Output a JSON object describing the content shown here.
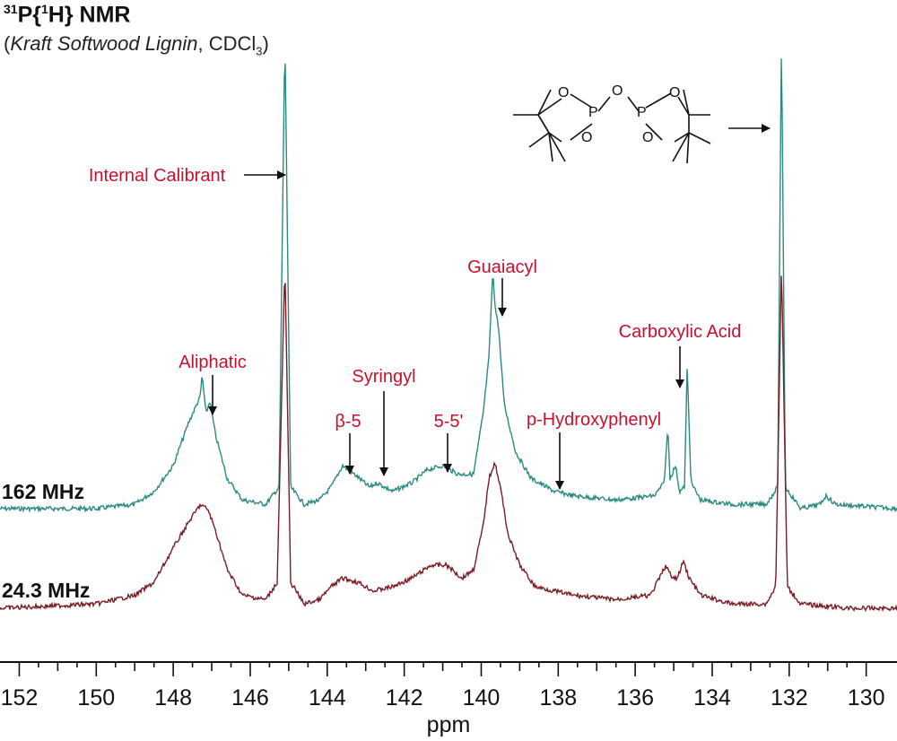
{
  "header": {
    "nucleus_mass": "31",
    "title_rest_a": "P{",
    "title_h_mass": "1",
    "title_rest_b": "H} NMR",
    "subtitle_open": "(",
    "subtitle_sample": "Kraft Softwood Lignin",
    "subtitle_solvent": ", CDCl",
    "subtitle_sub": "3",
    "subtitle_close": ")"
  },
  "chart_data": {
    "type": "line",
    "xlabel": "ppm",
    "xlim": [
      152.5,
      129.2
    ],
    "x_reversed": true,
    "xticks": [
      152,
      150,
      148,
      146,
      144,
      142,
      140,
      138,
      136,
      134,
      132,
      130
    ],
    "series": [
      {
        "name": "162 MHz",
        "color": "#2a8a80",
        "points": [
          [
            152.5,
            0.0
          ],
          [
            150,
            0.0
          ],
          [
            149,
            0.01
          ],
          [
            148.5,
            0.04
          ],
          [
            148,
            0.1
          ],
          [
            147.6,
            0.2
          ],
          [
            147.3,
            0.26
          ],
          [
            147.25,
            0.31
          ],
          [
            147.15,
            0.22
          ],
          [
            147.05,
            0.25
          ],
          [
            146.9,
            0.17
          ],
          [
            146.6,
            0.07
          ],
          [
            146.2,
            0.02
          ],
          [
            145.6,
            0.01
          ],
          [
            145.25,
            0.05
          ],
          [
            145.1,
            1.1
          ],
          [
            144.95,
            0.05
          ],
          [
            144.6,
            0.01
          ],
          [
            144.2,
            0.02
          ],
          [
            143.9,
            0.05
          ],
          [
            143.6,
            0.1
          ],
          [
            143.3,
            0.08
          ],
          [
            142.9,
            0.05
          ],
          [
            142.7,
            0.06
          ],
          [
            142.3,
            0.04
          ],
          [
            141.8,
            0.06
          ],
          [
            141.4,
            0.09
          ],
          [
            141.0,
            0.1
          ],
          [
            140.6,
            0.08
          ],
          [
            140.2,
            0.08
          ],
          [
            139.95,
            0.22
          ],
          [
            139.8,
            0.35
          ],
          [
            139.7,
            0.55
          ],
          [
            139.65,
            0.48
          ],
          [
            139.55,
            0.42
          ],
          [
            139.4,
            0.24
          ],
          [
            139.1,
            0.13
          ],
          [
            138.7,
            0.07
          ],
          [
            138.1,
            0.04
          ],
          [
            137.6,
            0.03
          ],
          [
            136.5,
            0.02
          ],
          [
            135.5,
            0.03
          ],
          [
            135.25,
            0.06
          ],
          [
            135.15,
            0.19
          ],
          [
            135.1,
            0.07
          ],
          [
            134.95,
            0.1
          ],
          [
            134.85,
            0.04
          ],
          [
            134.72,
            0.05
          ],
          [
            134.65,
            0.33
          ],
          [
            134.55,
            0.06
          ],
          [
            134.3,
            0.02
          ],
          [
            133.5,
            0.01
          ],
          [
            132.6,
            0.01
          ],
          [
            132.3,
            0.05
          ],
          [
            132.2,
            1.1
          ],
          [
            132.1,
            0.05
          ],
          [
            131.7,
            0.0
          ],
          [
            131.2,
            0.01
          ],
          [
            131.05,
            0.03
          ],
          [
            130.8,
            0.01
          ],
          [
            129.2,
            0.0
          ]
        ]
      },
      {
        "name": "24.3 MHz",
        "color": "#7a1c24",
        "points": [
          [
            152.5,
            0.0
          ],
          [
            150,
            0.01
          ],
          [
            149,
            0.03
          ],
          [
            148.5,
            0.06
          ],
          [
            148,
            0.14
          ],
          [
            147.6,
            0.2
          ],
          [
            147.3,
            0.24
          ],
          [
            147.1,
            0.23
          ],
          [
            146.9,
            0.18
          ],
          [
            146.6,
            0.09
          ],
          [
            146.2,
            0.03
          ],
          [
            145.6,
            0.02
          ],
          [
            145.3,
            0.06
          ],
          [
            145.1,
            0.8
          ],
          [
            144.95,
            0.06
          ],
          [
            144.6,
            0.01
          ],
          [
            144.2,
            0.02
          ],
          [
            143.9,
            0.05
          ],
          [
            143.6,
            0.07
          ],
          [
            143.2,
            0.06
          ],
          [
            142.8,
            0.04
          ],
          [
            142.3,
            0.05
          ],
          [
            141.8,
            0.07
          ],
          [
            141.3,
            0.1
          ],
          [
            140.9,
            0.1
          ],
          [
            140.5,
            0.07
          ],
          [
            140.2,
            0.09
          ],
          [
            139.95,
            0.19
          ],
          [
            139.8,
            0.3
          ],
          [
            139.65,
            0.34
          ],
          [
            139.5,
            0.28
          ],
          [
            139.3,
            0.17
          ],
          [
            139.0,
            0.1
          ],
          [
            138.6,
            0.05
          ],
          [
            138.1,
            0.04
          ],
          [
            137.6,
            0.03
          ],
          [
            136.5,
            0.02
          ],
          [
            135.6,
            0.03
          ],
          [
            135.2,
            0.1
          ],
          [
            135.05,
            0.07
          ],
          [
            134.9,
            0.07
          ],
          [
            134.75,
            0.11
          ],
          [
            134.6,
            0.07
          ],
          [
            134.3,
            0.03
          ],
          [
            133.5,
            0.01
          ],
          [
            132.6,
            0.01
          ],
          [
            132.35,
            0.05
          ],
          [
            132.2,
            0.8
          ],
          [
            132.05,
            0.05
          ],
          [
            131.7,
            0.01
          ],
          [
            130.5,
            0.0
          ],
          [
            129.2,
            0.0
          ]
        ]
      }
    ],
    "annotations": [
      {
        "text": "Internal Calibrant",
        "ppm": 145.1
      },
      {
        "text": "Aliphatic",
        "ppm": 147.15
      },
      {
        "text": "β-5",
        "ppm": 143.6
      },
      {
        "text": "Syringyl",
        "ppm": 142.7
      },
      {
        "text": "5-5'",
        "ppm": 141.0
      },
      {
        "text": "Guaiacyl",
        "ppm": 139.65
      },
      {
        "text": "p-Hydroxyphenyl",
        "ppm": 138.1
      },
      {
        "text": "Carboxylic Acid",
        "ppm": 134.95
      }
    ],
    "structure_atoms": {
      "o1": "O",
      "o2": "O",
      "o3": "O",
      "o4": "O",
      "o5": "O",
      "p1": "P",
      "p2": "P"
    },
    "annotation_color": "#c8102e",
    "grid": false
  }
}
